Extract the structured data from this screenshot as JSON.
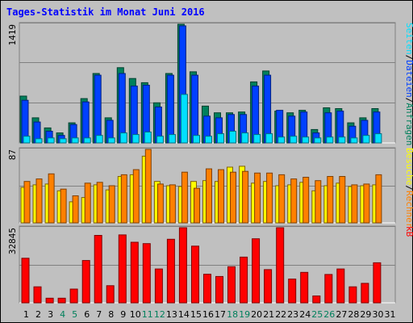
{
  "title": "Tages-Statistik im Monat Juni 2016",
  "colors": {
    "hits": "#00805c",
    "files": "#0040ff",
    "pages": "#00e0ff",
    "visits": "#ffff00",
    "sites": "#ff8000",
    "kbytes": "#ff0000",
    "weekend_day": "#00805c",
    "weekday": "#000000",
    "title": "#0000ff"
  },
  "chart_data": [
    {
      "type": "bar",
      "panel": "top",
      "ymax_label": "1419",
      "legend": [
        {
          "label": "Anfragen",
          "color": "#00805c"
        },
        {
          "label": "Dateien",
          "color": "#0040ff"
        },
        {
          "label": "Seiten",
          "color": "#00e0ff"
        }
      ],
      "categories": [
        "1",
        "2",
        "3",
        "4",
        "5",
        "6",
        "7",
        "8",
        "9",
        "10",
        "11",
        "12",
        "13",
        "14",
        "15",
        "16",
        "17",
        "18",
        "19",
        "20",
        "21",
        "22",
        "23",
        "24",
        "25",
        "26",
        "27",
        "28",
        "29",
        "30",
        "31"
      ],
      "weekend": [
        "4",
        "5",
        "11",
        "12",
        "18",
        "19",
        "25",
        "26"
      ],
      "series": [
        {
          "name": "Anfragen",
          "values": [
            560,
            300,
            180,
            120,
            240,
            530,
            830,
            300,
            900,
            770,
            720,
            480,
            830,
            1419,
            850,
            440,
            360,
            360,
            370,
            730,
            860,
            380,
            360,
            390,
            160,
            420,
            410,
            240,
            300,
            410,
            0
          ]
        },
        {
          "name": "Dateien",
          "values": [
            510,
            250,
            140,
            90,
            220,
            490,
            810,
            270,
            830,
            680,
            690,
            430,
            810,
            1400,
            810,
            320,
            300,
            340,
            340,
            680,
            810,
            390,
            320,
            370,
            120,
            360,
            380,
            200,
            270,
            370,
            0
          ]
        },
        {
          "name": "Seiten",
          "values": [
            80,
            50,
            60,
            50,
            60,
            60,
            90,
            60,
            120,
            100,
            130,
            80,
            100,
            580,
            90,
            80,
            110,
            140,
            120,
            100,
            110,
            70,
            80,
            70,
            60,
            70,
            70,
            60,
            90,
            110,
            0
          ]
        }
      ]
    },
    {
      "type": "bar",
      "panel": "middle",
      "ymax_label": "87",
      "legend": [
        {
          "label": "Rechner",
          "color": "#ff8000"
        },
        {
          "label": "Besuche",
          "color": "#ffff00"
        }
      ],
      "categories": [
        "1",
        "2",
        "3",
        "4",
        "5",
        "6",
        "7",
        "8",
        "9",
        "10",
        "11",
        "12",
        "13",
        "14",
        "15",
        "16",
        "17",
        "18",
        "19",
        "20",
        "21",
        "22",
        "23",
        "24",
        "25",
        "26",
        "27",
        "28",
        "29",
        "30",
        "31"
      ],
      "series": [
        {
          "name": "Besuche",
          "values": [
            42,
            45,
            46,
            38,
            25,
            30,
            45,
            39,
            55,
            57,
            79,
            49,
            44,
            43,
            49,
            50,
            49,
            66,
            67,
            47,
            49,
            44,
            45,
            48,
            38,
            44,
            47,
            43,
            44,
            45,
            0
          ]
        },
        {
          "name": "Rechner",
          "values": [
            49,
            52,
            58,
            40,
            32,
            47,
            48,
            44,
            57,
            63,
            87,
            46,
            45,
            60,
            41,
            64,
            63,
            60,
            61,
            59,
            59,
            57,
            52,
            54,
            50,
            55,
            55,
            45,
            46,
            57,
            0
          ]
        }
      ]
    },
    {
      "type": "bar",
      "panel": "bottom",
      "ymax_label": "32845",
      "legend": [
        {
          "label": "kB",
          "color": "#ff0000"
        }
      ],
      "categories": [
        "1",
        "2",
        "3",
        "4",
        "5",
        "6",
        "7",
        "8",
        "9",
        "10",
        "11",
        "12",
        "13",
        "14",
        "15",
        "16",
        "17",
        "18",
        "19",
        "20",
        "21",
        "22",
        "23",
        "24",
        "25",
        "26",
        "27",
        "28",
        "29",
        "30",
        "31"
      ],
      "series": [
        {
          "name": "kB",
          "values": [
            19500,
            7000,
            2000,
            2000,
            6000,
            18500,
            29500,
            7500,
            29700,
            26500,
            25900,
            14800,
            27800,
            32845,
            24800,
            12500,
            11500,
            15800,
            20000,
            28000,
            14500,
            32845,
            10400,
            13300,
            3000,
            12400,
            14800,
            7000,
            8500,
            17500,
            0
          ]
        }
      ]
    }
  ]
}
